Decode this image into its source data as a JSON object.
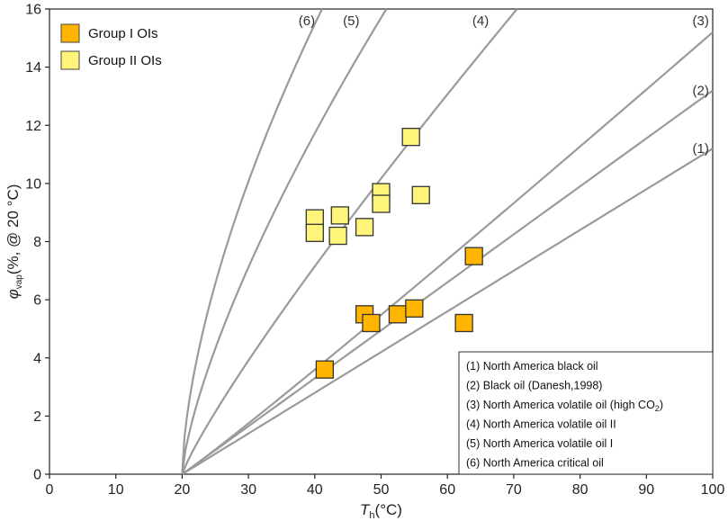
{
  "chart_data": {
    "type": "scatter",
    "xlabel_main": "T",
    "xlabel_sub": "h",
    "xlabel_unit": "(°C)",
    "ylabel_main": "φ",
    "ylabel_sub": "vap",
    "ylabel_unit": "(%, @ 20 °C)",
    "xlim": [
      0,
      100
    ],
    "ylim": [
      0,
      16
    ],
    "x_ticks": [
      0,
      10,
      20,
      30,
      40,
      50,
      60,
      70,
      80,
      90,
      100
    ],
    "y_ticks": [
      0,
      2,
      4,
      6,
      8,
      10,
      12,
      14,
      16
    ],
    "grid": false,
    "legend_position": "top-left",
    "series": [
      {
        "name": "Group I OIs",
        "color": "#FFB400",
        "points": [
          {
            "x": 41.5,
            "y": 3.6
          },
          {
            "x": 47.5,
            "y": 5.5
          },
          {
            "x": 48.5,
            "y": 5.2
          },
          {
            "x": 52.5,
            "y": 5.5
          },
          {
            "x": 55.0,
            "y": 5.7
          },
          {
            "x": 62.5,
            "y": 5.2
          },
          {
            "x": 64.0,
            "y": 7.5
          }
        ]
      },
      {
        "name": "Group II OIs",
        "color": "#FFF47A",
        "points": [
          {
            "x": 40.0,
            "y": 8.8
          },
          {
            "x": 40.0,
            "y": 8.3
          },
          {
            "x": 43.5,
            "y": 8.2
          },
          {
            "x": 43.8,
            "y": 8.9
          },
          {
            "x": 47.5,
            "y": 8.5
          },
          {
            "x": 50.0,
            "y": 9.7
          },
          {
            "x": 50.0,
            "y": 9.3
          },
          {
            "x": 54.5,
            "y": 11.6
          },
          {
            "x": 56.0,
            "y": 9.6
          }
        ]
      }
    ],
    "curves": [
      {
        "id": "(1)",
        "name": "North America black oil",
        "x_end": 100,
        "y_end": 11.2,
        "exp": 1.0,
        "label_at": [
          98.2,
          11.2
        ]
      },
      {
        "id": "(2)",
        "name": "Black oil (Danesh,1998)",
        "x_end": 100,
        "y_end": 13.2,
        "exp": 1.0,
        "label_at": [
          98.2,
          13.2
        ]
      },
      {
        "id": "(3)",
        "name": "North America volatile oil (high CO",
        "name_sub": "2",
        "name_tail": ")",
        "x_end": 100,
        "y_end": 15.2,
        "exp": 1.04,
        "label_at": [
          98.2,
          15.6
        ]
      },
      {
        "id": "(4)",
        "name": "North America volatile oil II",
        "x_end": 70.5,
        "y_end": 16,
        "exp": 0.87,
        "label_at": [
          65.0,
          15.6
        ]
      },
      {
        "id": "(5)",
        "name": "North America volatile oil I",
        "x_end": 50.8,
        "y_end": 16,
        "exp": 0.72,
        "label_at": [
          45.5,
          15.6
        ]
      },
      {
        "id": "(6)",
        "name": "North America critical oil",
        "x_end": 41.1,
        "y_end": 16,
        "exp": 0.62,
        "label_at": [
          38.8,
          15.6
        ]
      }
    ],
    "curve_origin": {
      "x": 20,
      "y": 0
    }
  }
}
